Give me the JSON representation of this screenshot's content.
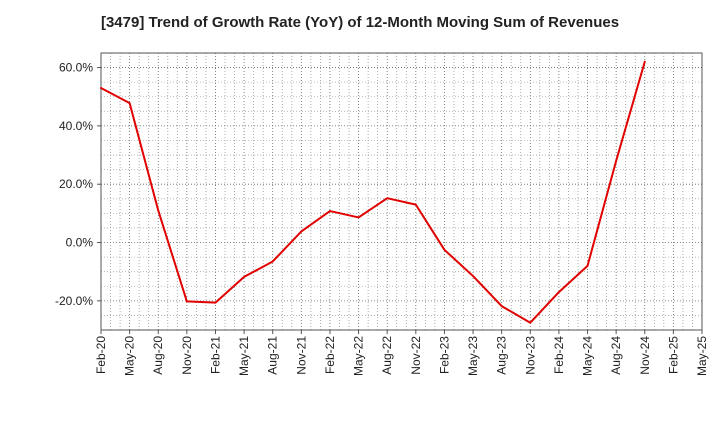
{
  "chart_data": {
    "type": "line",
    "title": "[3479]  Trend of Growth Rate (YoY) of 12-Month Moving Sum of Revenues",
    "xlabel": "",
    "ylabel": "",
    "x_tick_labels": [
      "Feb-20",
      "May-20",
      "Aug-20",
      "Nov-20",
      "Feb-21",
      "May-21",
      "Aug-21",
      "Nov-21",
      "Feb-22",
      "May-22",
      "Aug-22",
      "Nov-22",
      "Feb-23",
      "May-23",
      "Aug-23",
      "Nov-23",
      "Feb-24",
      "May-24",
      "Aug-24",
      "Nov-24",
      "Feb-25",
      "May-25"
    ],
    "y_ticks": [
      -20,
      0,
      20,
      40,
      60
    ],
    "y_tick_labels": [
      "-20.0%",
      "0.0%",
      "20.0%",
      "40.0%",
      "60.0%"
    ],
    "ylim": [
      -30,
      65
    ],
    "grid": true,
    "series": [
      {
        "color": "#e00000",
        "values": [
          53.0,
          47.8,
          11.0,
          -20.2,
          -20.6,
          -11.8,
          -6.5,
          3.8,
          10.8,
          8.6,
          15.2,
          13.0,
          -2.5,
          -11.5,
          -21.8,
          -27.5,
          -17.0,
          -8.0,
          28.0,
          62.0
        ]
      }
    ]
  }
}
